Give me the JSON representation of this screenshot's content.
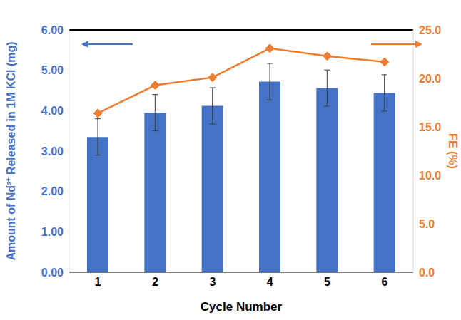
{
  "chart_data": {
    "type": "bar",
    "categories": [
      "1",
      "2",
      "3",
      "4",
      "5",
      "6"
    ],
    "x_label": "Cycle Number",
    "y_label": "Amount of Nd³⁺ Released in 1M KCl (mg)",
    "y2_label": "FE (%)",
    "ylim": [
      0,
      6
    ],
    "yticks": [
      {
        "value": 0,
        "label": "0.00"
      },
      {
        "value": 1,
        "label": "1.00"
      },
      {
        "value": 2,
        "label": "2.00"
      },
      {
        "value": 3,
        "label": "3.00"
      },
      {
        "value": 4,
        "label": "4.00"
      },
      {
        "value": 5,
        "label": "5.00"
      },
      {
        "value": 6,
        "label": "6.00"
      }
    ],
    "y2lim": [
      0,
      25
    ],
    "y2ticks": [
      {
        "value": 0,
        "label": "0.0"
      },
      {
        "value": 5,
        "label": "5.0"
      },
      {
        "value": 10,
        "label": "10.0"
      },
      {
        "value": 15,
        "label": "15.0"
      },
      {
        "value": 20,
        "label": "20.0"
      },
      {
        "value": 25,
        "label": "25.0"
      }
    ],
    "grid": false,
    "series": [
      {
        "type": "bar",
        "color": "#4472c4",
        "values": [
          3.35,
          3.95,
          4.12,
          4.72,
          4.56,
          4.44
        ],
        "errors": [
          0.45,
          0.45,
          0.45,
          0.45,
          0.45,
          0.45
        ]
      },
      {
        "type": "line",
        "axis": "y2",
        "color": "#ed7d31",
        "marker": "diamond",
        "values": [
          16.4,
          19.3,
          20.1,
          23.1,
          22.3,
          21.7
        ]
      }
    ]
  }
}
